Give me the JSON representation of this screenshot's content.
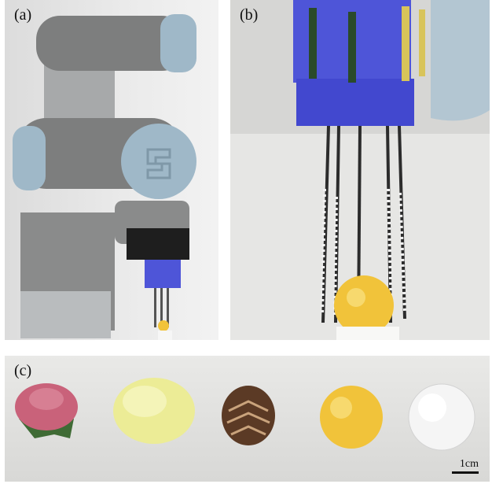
{
  "panels": {
    "a": {
      "label": "(a)"
    },
    "b": {
      "label": "(b)"
    },
    "c": {
      "label": "(c)",
      "scale": "1cm"
    }
  },
  "objects": [
    "rose",
    "sponge-ball",
    "pinecone",
    "yellow-ball",
    "foam-ball"
  ],
  "colors": {
    "robot_blue": "#9fb8c8",
    "robot_gray": "#7d7e7e",
    "gripper_purple": "#4e55d8",
    "ball_yellow": "#f1c33a",
    "rose_pink": "#c9627a"
  }
}
